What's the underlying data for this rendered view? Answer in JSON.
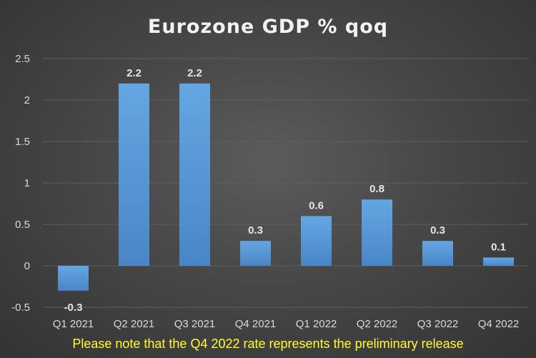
{
  "chart_data": {
    "type": "bar",
    "title": "Eurozone GDP % qoq",
    "categories": [
      "Q1 2021",
      "Q2 2021",
      "Q3 2021",
      "Q4 2021",
      "Q1 2022",
      "Q2 2022",
      "Q3 2022",
      "Q4 2022"
    ],
    "values": [
      -0.3,
      2.2,
      2.2,
      0.3,
      0.6,
      0.8,
      0.3,
      0.1
    ],
    "data_labels": [
      "-0.3",
      "2.2",
      "2.2",
      "0.3",
      "0.6",
      "0.8",
      "0.3",
      "0.1"
    ],
    "ylim": [
      -0.5,
      2.5
    ],
    "yticks": [
      -0.5,
      0,
      0.5,
      1,
      1.5,
      2,
      2.5
    ],
    "ytick_labels": [
      "-0.5",
      "0",
      "0.5",
      "1",
      "1.5",
      "2",
      "2.5"
    ],
    "grid": true,
    "legend": "none",
    "bar_color": "#5b9bd5",
    "footnote": "Please note that the Q4 2022 rate  represents the preliminary release"
  },
  "colors": {
    "background": "#474747",
    "grid": "#5e5e5e",
    "footnote": "#ffff33"
  }
}
